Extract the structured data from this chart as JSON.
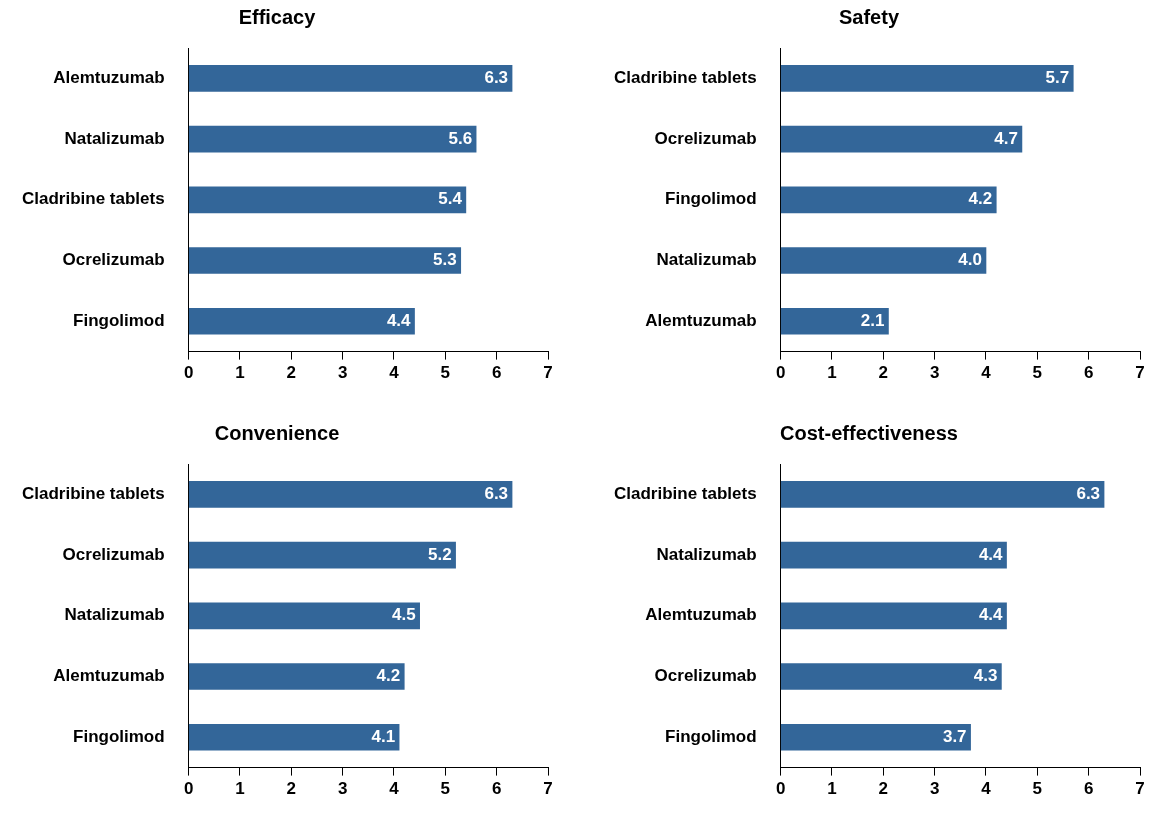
{
  "chart_data": [
    {
      "type": "bar",
      "orientation": "horizontal",
      "title": "Efficacy",
      "categories": [
        "Alemtuzumab",
        "Natalizumab",
        "Cladribine tablets",
        "Ocrelizumab",
        "Fingolimod"
      ],
      "values": [
        6.3,
        5.6,
        5.4,
        5.3,
        4.4
      ],
      "color": "#336699",
      "xlim": [
        0,
        7
      ],
      "xticks": [
        0,
        1,
        2,
        3,
        4,
        5,
        6,
        7
      ],
      "data_labels": true
    },
    {
      "type": "bar",
      "orientation": "horizontal",
      "title": "Safety",
      "categories": [
        "Cladribine tablets",
        "Ocrelizumab",
        "Fingolimod",
        "Natalizumab",
        "Alemtuzumab"
      ],
      "values": [
        5.7,
        4.7,
        4.2,
        4.0,
        2.1
      ],
      "value_labels": [
        "5.7",
        "4.7",
        "4.2",
        "4.0",
        "2.1"
      ],
      "color": "#336699",
      "xlim": [
        0,
        7
      ],
      "xticks": [
        0,
        1,
        2,
        3,
        4,
        5,
        6,
        7
      ]
    },
    {
      "type": "bar",
      "orientation": "horizontal",
      "title": "Convenience",
      "categories": [
        "Cladribine tablets",
        "Ocrelizumab",
        "Natalizumab",
        "Alemtuzumab",
        "Fingolimod"
      ],
      "values": [
        6.3,
        5.2,
        4.5,
        4.2,
        4.1
      ],
      "color": "#336699",
      "xlim": [
        0,
        7
      ],
      "xticks": [
        0,
        1,
        2,
        3,
        4,
        5,
        6,
        7
      ],
      "data_labels": true
    },
    {
      "type": "bar",
      "orientation": "horizontal",
      "title": "Cost-effectiveness",
      "categories": [
        "Cladribine tablets",
        "Natalizumab",
        "Alemtuzumab",
        "Ocrelizumab",
        "Fingolimod"
      ],
      "values": [
        6.3,
        4.4,
        4.4,
        4.3,
        3.7
      ],
      "color": "#336699",
      "xlim": [
        0,
        7
      ],
      "xticks": [
        0,
        1,
        2,
        3,
        4,
        5,
        6,
        7
      ],
      "data_labels": true
    }
  ]
}
